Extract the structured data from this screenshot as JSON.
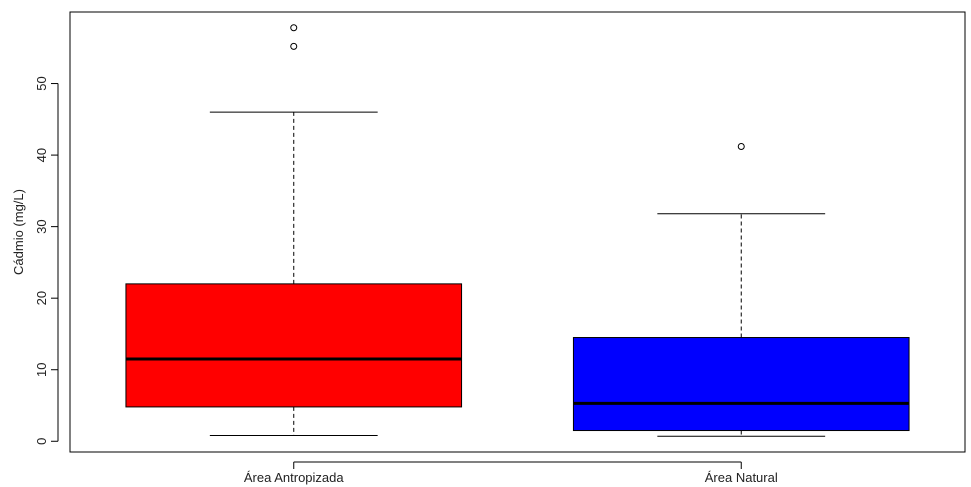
{
  "chart_data": {
    "type": "boxplot",
    "title": "",
    "xlabel": "",
    "ylabel": "Cádmio (mg/L)",
    "ylim": [
      -1.5,
      60
    ],
    "yticks": [
      0,
      10,
      20,
      30,
      40,
      50
    ],
    "ytick_labels": [
      "0",
      "10",
      "20",
      "30",
      "40",
      "50"
    ],
    "grid": false,
    "categories": [
      "Área Antropizada",
      "Área Natural"
    ],
    "boxes": [
      {
        "category": "Área Antropizada",
        "whisker_low": 0.8,
        "q1": 4.8,
        "median": 11.5,
        "q3": 22.0,
        "whisker_high": 46.0,
        "outliers": [
          55.2,
          57.8
        ],
        "color": "#ff0000"
      },
      {
        "category": "Área Natural",
        "whisker_low": 0.7,
        "q1": 1.5,
        "median": 5.3,
        "q3": 14.5,
        "whisker_high": 31.8,
        "outliers": [
          41.2
        ],
        "color": "#0000ff"
      }
    ]
  }
}
